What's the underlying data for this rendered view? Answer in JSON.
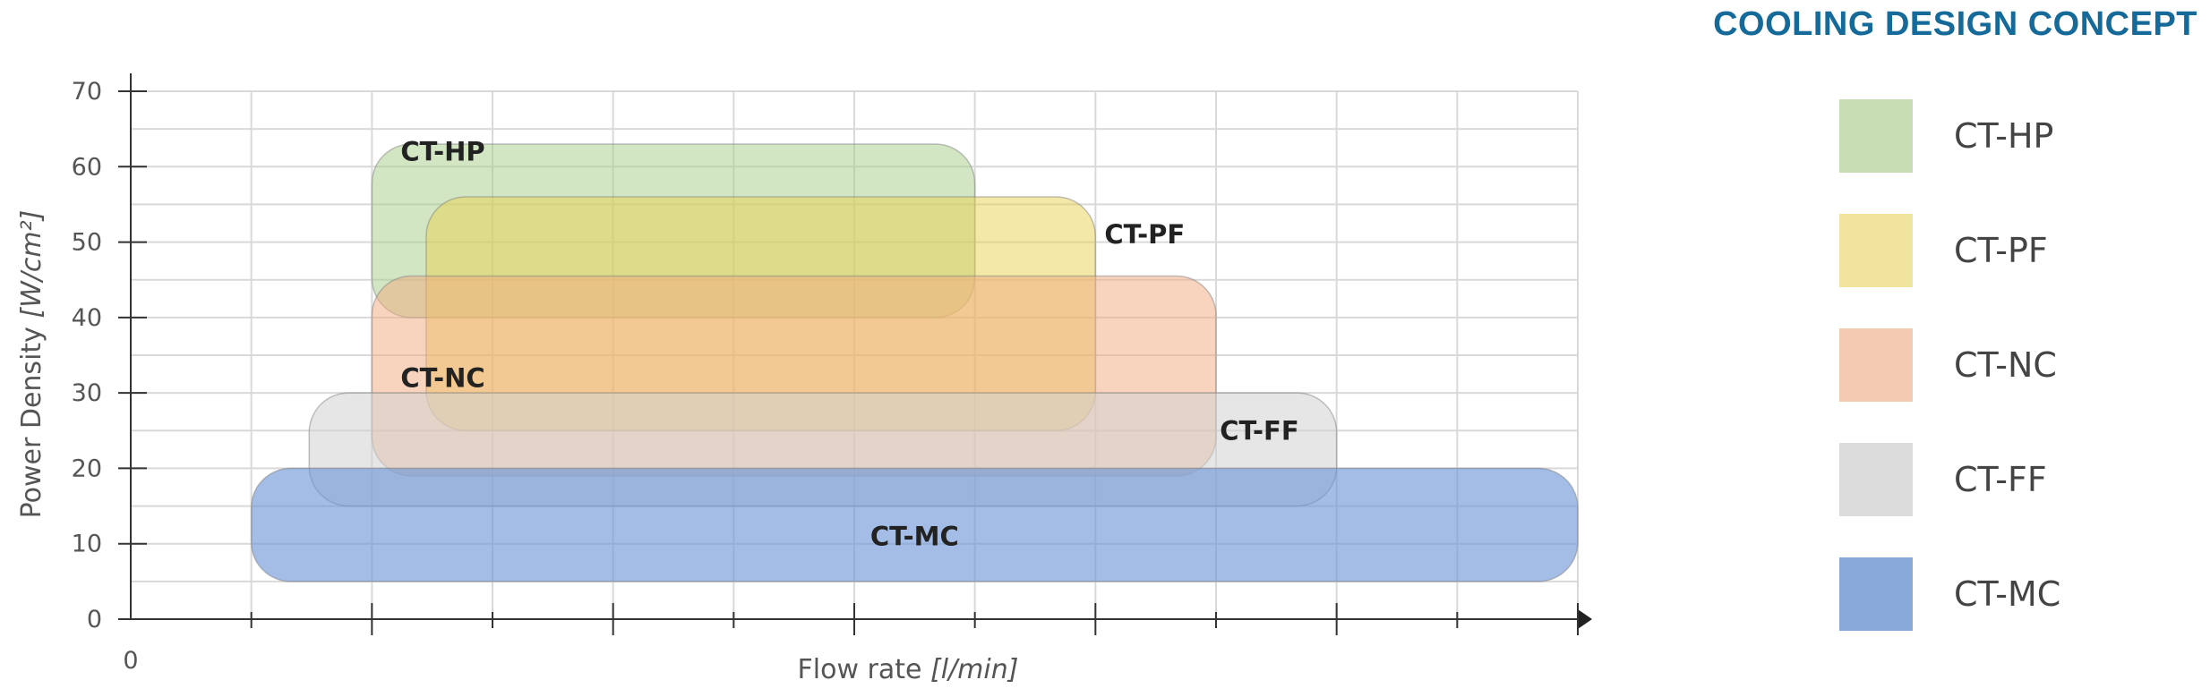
{
  "chart_data": {
    "type": "area",
    "title": "COOLING DESIGN CONCEPT",
    "xlabel": "Flow rate",
    "xlabel_unit": "[l/min]",
    "ylabel": "Power Density",
    "ylabel_unit": "[W/cm²]",
    "x_origin_label": "0",
    "ylim": [
      0,
      70
    ],
    "yticks": [
      0,
      10,
      20,
      30,
      40,
      50,
      60,
      70
    ],
    "grid": true,
    "x_tick_labels_shown": false,
    "legend_position": "right",
    "series": [
      {
        "name": "CT-HP",
        "power_density_range": [
          40,
          63
        ],
        "flow_rate_range": [
          2,
          7
        ],
        "color": "#a6cd8a",
        "opacity": 0.5
      },
      {
        "name": "CT-PF",
        "power_density_range": [
          25,
          56
        ],
        "flow_rate_range": [
          2.45,
          8
        ],
        "color": "#e7d24f",
        "opacity": 0.5
      },
      {
        "name": "CT-NC",
        "power_density_range": [
          19,
          45.5
        ],
        "flow_rate_range": [
          2,
          9
        ],
        "color": "#f1a97e",
        "opacity": 0.5
      },
      {
        "name": "CT-FF",
        "power_density_range": [
          15,
          30
        ],
        "flow_rate_range": [
          1.48,
          10
        ],
        "color": "#d1d1d1",
        "opacity": 0.55
      },
      {
        "name": "CT-MC",
        "power_density_range": [
          5,
          20
        ],
        "flow_rate_range": [
          1,
          12
        ],
        "color": "#6a94d6",
        "opacity": 0.62
      }
    ]
  },
  "legend": {
    "title": "COOLING DESIGN CONCEPT",
    "items": [
      {
        "label": "CT-HP",
        "color": "#c7deb4"
      },
      {
        "label": "CT-PF",
        "color": "#f1e49c"
      },
      {
        "label": "CT-NC",
        "color": "#f4cbb2"
      },
      {
        "label": "CT-FF",
        "color": "#dcdcdc"
      },
      {
        "label": "CT-MC",
        "color": "#88a9da"
      }
    ]
  }
}
